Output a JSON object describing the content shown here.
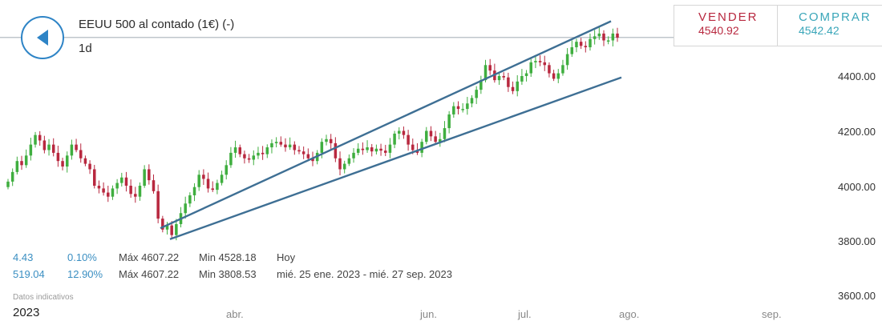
{
  "header": {
    "back_icon": "back-arrow-icon",
    "title": "EEUU 500 al contado (1€) (-)",
    "period": "1d"
  },
  "quote": {
    "sell_label": "VENDER",
    "sell_value": "4540.92",
    "buy_label": "COMPRAR",
    "buy_value": "4542.42",
    "sell_color": "#b8283f",
    "buy_color": "#3aa6b9"
  },
  "stats": {
    "row1": {
      "change": "4.43",
      "pct": "0.10%",
      "max": "Máx 4607.22",
      "min": "Min 4528.18",
      "range": "Hoy"
    },
    "row2": {
      "change": "519.04",
      "pct": "12.90%",
      "max": "Máx 4607.22",
      "min": "Min 3808.53",
      "range": "mié. 25 ene. 2023 - mié. 27 sep. 2023"
    }
  },
  "footer": {
    "note": "Datos indicativos",
    "year": "2023",
    "months": [
      "abr.",
      "jun.",
      "jul.",
      "ago.",
      "sep."
    ]
  },
  "chart_data": {
    "type": "candlestick",
    "interval": "1d",
    "y_ticks": [
      "4400.00",
      "4200.00",
      "4000.00",
      "3800.00",
      "3600.00"
    ],
    "ylim": [
      3570,
      4650
    ],
    "x_tick_labels": [
      "2023",
      "abr.",
      "jun.",
      "jul.",
      "ago.",
      "sep."
    ],
    "current_price": 4540.92,
    "colors": {
      "up": "#3fae3f",
      "down": "#b8283f",
      "channel": "#3e6f94",
      "price_line": "#bfc6cc"
    },
    "closes": [
      4015,
      4050,
      4090,
      4075,
      4110,
      4150,
      4185,
      4165,
      4130,
      4150,
      4120,
      4090,
      4070,
      4110,
      4150,
      4130,
      4100,
      4080,
      4060,
      4000,
      3990,
      3975,
      3960,
      3990,
      4010,
      4030,
      4000,
      3970,
      3960,
      4000,
      4060,
      4020,
      3980,
      3880,
      3840,
      3855,
      3820,
      3860,
      3900,
      3935,
      3965,
      3995,
      4040,
      4025,
      3990,
      3985,
      4010,
      4040,
      4075,
      4120,
      4140,
      4115,
      4100,
      4095,
      4110,
      4120,
      4115,
      4140,
      4155,
      4160,
      4150,
      4140,
      4150,
      4130,
      4125,
      4115,
      4100,
      4090,
      4120,
      4160,
      4170,
      4155,
      4100,
      4060,
      4080,
      4100,
      4120,
      4135,
      4130,
      4140,
      4125,
      4135,
      4128,
      4120,
      4150,
      4190,
      4200,
      4185,
      4150,
      4130,
      4120,
      4160,
      4200,
      4180,
      4160,
      4170,
      4210,
      4260,
      4290,
      4280,
      4280,
      4300,
      4320,
      4350,
      4385,
      4440,
      4420,
      4385,
      4400,
      4395,
      4360,
      4345,
      4380,
      4400,
      4410,
      4450,
      4455,
      4450,
      4440,
      4410,
      4390,
      4410,
      4440,
      4480,
      4505,
      4525,
      4510,
      4505,
      4535,
      4545,
      4555,
      4530,
      4530,
      4555,
      4540
    ],
    "channel": {
      "upper": [
        [
          3845,
          4600
        ]
      ],
      "lower": [
        [
          3805,
          4395
        ]
      ]
    }
  }
}
